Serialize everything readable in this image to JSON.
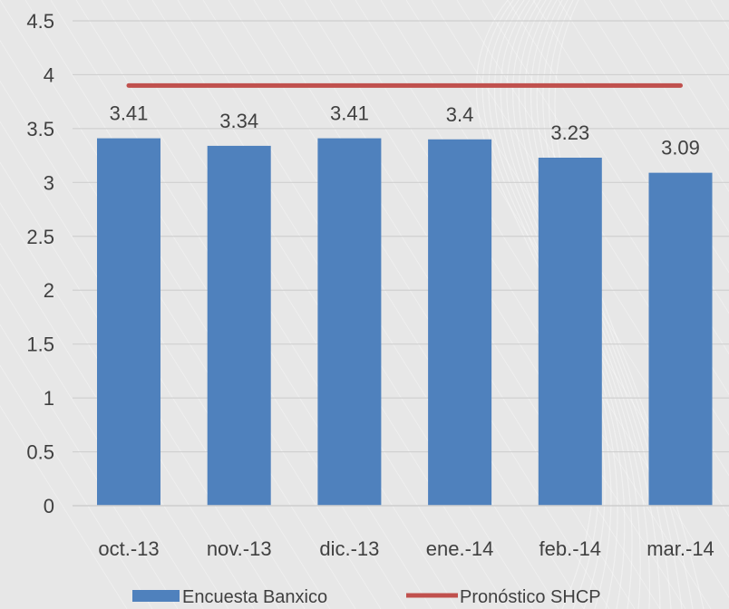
{
  "chart_data": {
    "type": "bar",
    "categories": [
      "oct.-13",
      "nov.-13",
      "dic.-13",
      "ene.-14",
      "feb.-14",
      "mar.-14"
    ],
    "series": [
      {
        "name": "Encuesta Banxico",
        "type": "bar",
        "values": [
          3.41,
          3.34,
          3.41,
          3.4,
          3.23,
          3.09
        ],
        "color": "#4f81bd"
      },
      {
        "name": "Pronóstico SHCP",
        "type": "line",
        "values": [
          3.9,
          3.9,
          3.9,
          3.9,
          3.9,
          3.9
        ],
        "color": "#c0504d"
      }
    ],
    "data_labels": [
      "3.41",
      "3.34",
      "3.41",
      "3.4",
      "3.23",
      "3.09"
    ],
    "ylim": [
      0,
      4.5
    ],
    "yticks": [
      "0",
      "0.5",
      "1",
      "1.5",
      "2",
      "2.5",
      "3",
      "3.5",
      "4",
      "4.5"
    ],
    "grid": true,
    "legend_position": "bottom",
    "title": "",
    "xlabel": "",
    "ylabel": ""
  }
}
